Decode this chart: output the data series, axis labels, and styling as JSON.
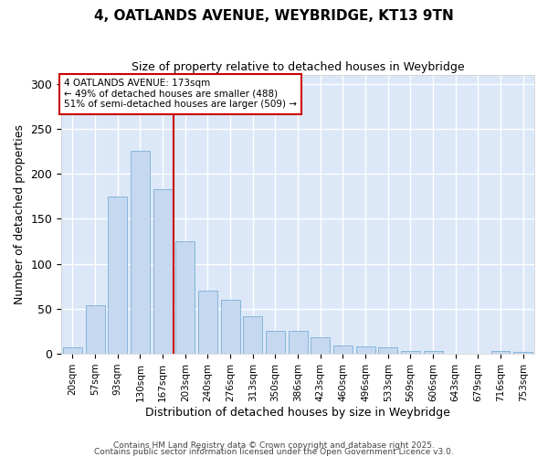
{
  "title1": "4, OATLANDS AVENUE, WEYBRIDGE, KT13 9TN",
  "title2": "Size of property relative to detached houses in Weybridge",
  "xlabel": "Distribution of detached houses by size in Weybridge",
  "ylabel": "Number of detached properties",
  "bin_labels": [
    "20sqm",
    "57sqm",
    "93sqm",
    "130sqm",
    "167sqm",
    "203sqm",
    "240sqm",
    "276sqm",
    "313sqm",
    "350sqm",
    "386sqm",
    "423sqm",
    "460sqm",
    "496sqm",
    "533sqm",
    "569sqm",
    "606sqm",
    "643sqm",
    "679sqm",
    "716sqm",
    "753sqm"
  ],
  "bar_values": [
    7,
    54,
    175,
    225,
    183,
    125,
    70,
    60,
    42,
    25,
    25,
    18,
    9,
    8,
    7,
    3,
    3,
    0,
    0,
    3,
    2
  ],
  "bar_color": "#c5d8f0",
  "bar_edgecolor": "#7bafd4",
  "plot_bg_color": "#dce8f8",
  "fig_bg_color": "#ffffff",
  "grid_color": "#ffffff",
  "vline_x": 4.5,
  "vline_color": "#cc0000",
  "annotation_text": "4 OATLANDS AVENUE: 173sqm\n← 49% of detached houses are smaller (488)\n51% of semi-detached houses are larger (509) →",
  "annotation_box_edgecolor": "#cc0000",
  "ylim": [
    0,
    310
  ],
  "yticks": [
    0,
    50,
    100,
    150,
    200,
    250,
    300
  ],
  "footnote1": "Contains HM Land Registry data © Crown copyright and database right 2025.",
  "footnote2": "Contains public sector information licensed under the Open Government Licence v3.0."
}
